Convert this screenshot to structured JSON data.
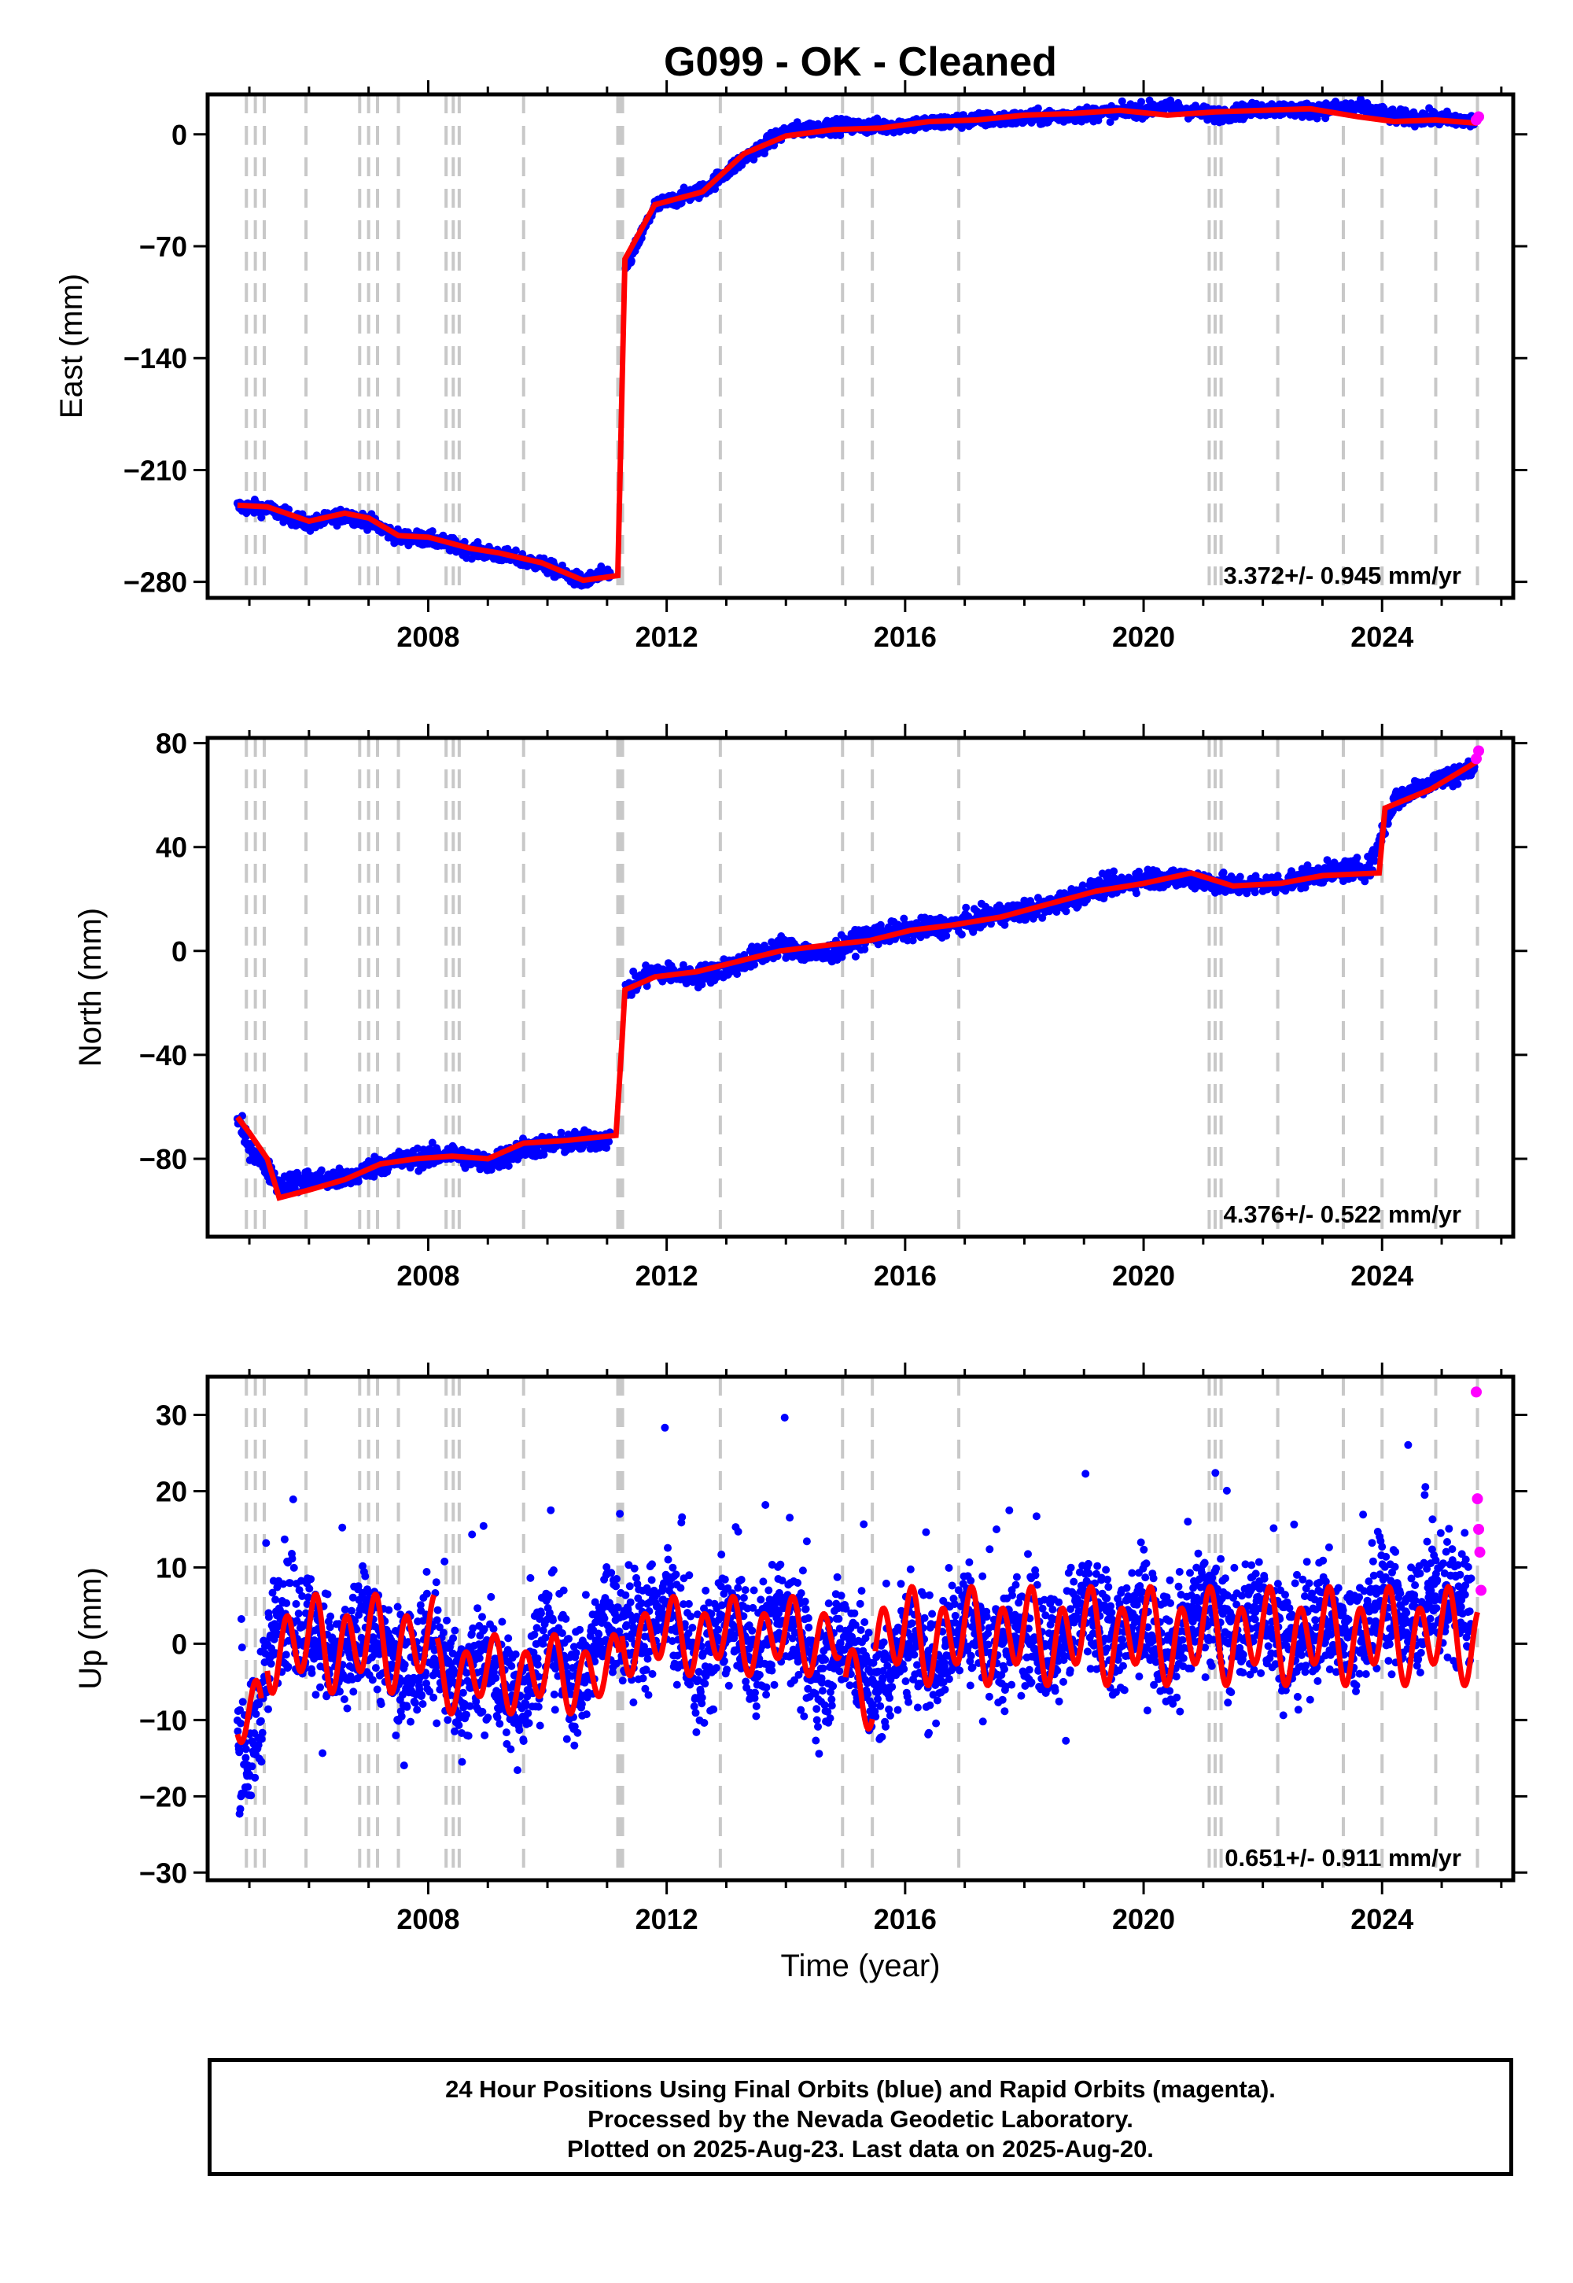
{
  "figure": {
    "title": "G099  - OK - Cleaned",
    "xlabel": "Time (year)"
  },
  "footer": {
    "line1": "24 Hour Positions Using Final Orbits (blue) and Rapid Orbits (magenta).",
    "line2": "Processed by the Nevada Geodetic Laboratory.",
    "line3": "Plotted on 2025-Aug-23. Last data on 2025-Aug-20."
  },
  "colors": {
    "final_orbits": "#0000ff",
    "rapid_orbits": "#ff00ff",
    "model": "#ff0000",
    "event_lines": "#c8c8c8"
  },
  "chart_data": [
    {
      "type": "scatter",
      "panel": "east",
      "ylabel": "East (mm)",
      "xlim": [
        2004.3,
        2026.2
      ],
      "ylim": [
        -290,
        25
      ],
      "yticks": [
        0,
        -70,
        -140,
        -210,
        -280
      ],
      "xticks": [
        2008,
        2012,
        2016,
        2020,
        2024
      ],
      "rate_label": "3.372+/- 0.945 mm/yr",
      "events": [
        2004.95,
        2005.1,
        2005.25,
        2005.95,
        2006.85,
        2007.0,
        2007.15,
        2007.5,
        2008.3,
        2008.42,
        2008.52,
        2009.6,
        2011.18,
        2011.22,
        2011.26,
        2012.9,
        2014.95,
        2015.45,
        2016.9,
        2021.1,
        2021.2,
        2021.3,
        2022.25,
        2023.35,
        2024.0,
        2024.9,
        2025.6
      ],
      "series": [
        {
          "name": "Final Orbits",
          "color": "#0000ff",
          "x": [
            2004.8,
            2005.3,
            2006.0,
            2006.6,
            2007.0,
            2007.5,
            2008.0,
            2008.7,
            2009.2,
            2009.9,
            2010.6,
            2011.1,
            2011.3,
            2011.8,
            2012.6,
            2013.3,
            2014.0,
            2014.8,
            2015.6,
            2016.4,
            2017.2,
            2018.0,
            2018.8,
            2019.6,
            2020.4,
            2021.2,
            2022.0,
            2022.8,
            2023.6,
            2024.2,
            2024.9,
            2025.55
          ],
          "y": [
            -233,
            -234,
            -244,
            -238,
            -242,
            -252,
            -253,
            -260,
            -263,
            -269,
            -280,
            -273,
            -85,
            -45,
            -35,
            -15,
            2,
            5,
            5,
            7,
            9,
            10,
            12,
            14,
            17,
            12,
            16,
            15,
            17,
            11,
            10,
            8
          ]
        },
        {
          "name": "Rapid Orbits",
          "color": "#ff00ff",
          "x": [
            2025.58,
            2025.62
          ],
          "y": [
            9,
            11
          ]
        }
      ],
      "model": {
        "x": [
          2004.8,
          2005.3,
          2006.0,
          2006.6,
          2007.0,
          2007.5,
          2008.0,
          2008.7,
          2009.2,
          2009.9,
          2010.6,
          2011.18,
          2011.25,
          2011.3,
          2011.8,
          2012.6,
          2013.3,
          2014.0,
          2014.8,
          2015.6,
          2016.4,
          2017.2,
          2018.0,
          2018.8,
          2019.6,
          2020.4,
          2021.2,
          2022.0,
          2022.8,
          2023.6,
          2024.2,
          2024.9,
          2025.6
        ],
        "y": [
          -232,
          -233,
          -242,
          -237,
          -240,
          -251,
          -252,
          -259,
          -262,
          -268,
          -279,
          -276,
          -160,
          -78,
          -44,
          -36,
          -12,
          -1,
          3,
          4,
          8,
          9,
          12,
          13,
          15,
          12,
          14,
          15,
          16,
          11,
          8,
          9,
          7
        ]
      }
    },
    {
      "type": "scatter",
      "panel": "north",
      "ylabel": "North (mm)",
      "xlim": [
        2004.3,
        2026.2
      ],
      "ylim": [
        -110,
        82
      ],
      "yticks": [
        80,
        40,
        0,
        -40,
        -80
      ],
      "xticks": [
        2008,
        2012,
        2016,
        2020,
        2024
      ],
      "rate_label": "4.376+/- 0.522 mm/yr",
      "events": [
        2004.95,
        2005.1,
        2005.25,
        2005.95,
        2006.85,
        2007.0,
        2007.15,
        2007.5,
        2008.3,
        2008.42,
        2008.52,
        2009.6,
        2011.18,
        2011.22,
        2011.26,
        2012.9,
        2014.95,
        2015.45,
        2016.9,
        2021.1,
        2021.2,
        2021.3,
        2022.25,
        2023.35,
        2024.0,
        2024.9,
        2025.6
      ],
      "series": [
        {
          "name": "Final Orbits",
          "color": "#0000ff",
          "x": [
            2004.8,
            2005.0,
            2005.5,
            2006.0,
            2006.6,
            2007.2,
            2007.8,
            2008.4,
            2009.0,
            2009.6,
            2010.3,
            2011.1,
            2011.3,
            2011.8,
            2012.5,
            2013.2,
            2013.9,
            2014.6,
            2015.4,
            2016.1,
            2016.8,
            2017.6,
            2018.4,
            2019.2,
            2020.0,
            2020.8,
            2021.5,
            2022.3,
            2023.0,
            2023.8,
            2024.2,
            2024.8,
            2025.55
          ],
          "y": [
            -65,
            -75,
            -90,
            -88,
            -88,
            -82,
            -80,
            -78,
            -82,
            -76,
            -74,
            -72,
            -15,
            -8,
            -10,
            -5,
            2,
            -2,
            6,
            8,
            10,
            14,
            17,
            24,
            28,
            28,
            25,
            26,
            30,
            32,
            58,
            65,
            70
          ]
        },
        {
          "name": "Rapid Orbits",
          "color": "#ff00ff",
          "x": [
            2025.58,
            2025.62
          ],
          "y": [
            74,
            77
          ]
        }
      ],
      "model": {
        "x": [
          2004.8,
          2005.0,
          2005.3,
          2005.5,
          2006.0,
          2006.6,
          2007.2,
          2007.8,
          2008.4,
          2009.0,
          2009.6,
          2010.3,
          2011.15,
          2011.25,
          2011.3,
          2011.8,
          2012.5,
          2013.2,
          2013.9,
          2014.6,
          2015.4,
          2016.1,
          2016.8,
          2017.6,
          2018.4,
          2019.2,
          2020.0,
          2020.8,
          2021.5,
          2022.3,
          2023.0,
          2023.95,
          2024.05,
          2024.8,
          2025.6
        ],
        "y": [
          -64,
          -70,
          -80,
          -95,
          -92,
          -88,
          -82,
          -80,
          -79,
          -80,
          -74,
          -73,
          -71,
          -35,
          -15,
          -10,
          -8,
          -4,
          0,
          2,
          4,
          8,
          10,
          13,
          18,
          23,
          26,
          30,
          25,
          26,
          29,
          30,
          55,
          62,
          73
        ]
      }
    },
    {
      "type": "scatter",
      "panel": "up",
      "ylabel": "Up (mm)",
      "xlim": [
        2004.3,
        2026.2
      ],
      "ylim": [
        -31,
        35
      ],
      "yticks": [
        30,
        20,
        10,
        0,
        -10,
        -20,
        -30
      ],
      "xticks": [
        2008,
        2012,
        2016,
        2020,
        2024
      ],
      "rate_label": "0.651+/- 0.911 mm/yr",
      "events": [
        2004.95,
        2005.1,
        2005.25,
        2005.95,
        2006.85,
        2007.0,
        2007.15,
        2007.5,
        2008.3,
        2008.42,
        2008.52,
        2009.6,
        2011.18,
        2011.22,
        2011.26,
        2012.9,
        2014.95,
        2015.45,
        2016.9,
        2021.1,
        2021.2,
        2021.3,
        2022.25,
        2023.35,
        2024.0,
        2024.9,
        2025.6
      ],
      "series": [
        {
          "name": "Final Orbits",
          "color": "#0000ff",
          "x": [
            2004.8,
            2005.0,
            2005.5,
            2006.0,
            2006.5,
            2007.0,
            2007.5,
            2008.0,
            2008.5,
            2009.0,
            2009.5,
            2010.0,
            2010.5,
            2011.0,
            2011.5,
            2012.0,
            2012.5,
            2013.0,
            2013.5,
            2014.0,
            2014.5,
            2015.0,
            2015.5,
            2016.0,
            2016.5,
            2017.0,
            2017.5,
            2018.0,
            2018.5,
            2019.0,
            2019.5,
            2020.0,
            2020.5,
            2021.0,
            2021.5,
            2022.0,
            2022.5,
            2023.0,
            2023.5,
            2024.0,
            2024.5,
            2025.0,
            2025.5
          ],
          "y": [
            -12,
            -15,
            5,
            2,
            -3,
            3,
            -5,
            1,
            -6,
            -2,
            -8,
            2,
            -6,
            4,
            0,
            6,
            -4,
            3,
            -2,
            5,
            -5,
            2,
            -7,
            1,
            -3,
            4,
            -2,
            3,
            -1,
            5,
            0,
            4,
            -1,
            6,
            1,
            5,
            -1,
            4,
            0,
            6,
            3,
            7,
            4
          ]
        },
        {
          "name": "Rapid Orbits",
          "color": "#ff00ff",
          "x": [
            2025.58,
            2025.6,
            2025.62,
            2025.64,
            2025.66
          ],
          "y": [
            33,
            19,
            15,
            12,
            7
          ]
        }
      ],
      "model": {
        "sinusoid": true
      }
    }
  ]
}
